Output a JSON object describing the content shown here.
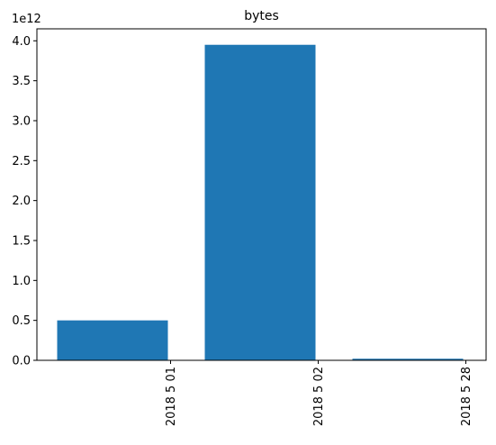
{
  "chart_data": {
    "type": "bar",
    "title": "bytes",
    "xlabel": "",
    "ylabel": "",
    "y_offset_label": "1e12",
    "categories": [
      "2018 5 01",
      "2018 5 02",
      "2018 5 28"
    ],
    "values": [
      500000000000,
      3950000000000,
      20000000000
    ],
    "ylim": [
      0,
      4150000000000
    ],
    "yticks": [
      0,
      0.5,
      1.0,
      1.5,
      2.0,
      2.5,
      3.0,
      3.5,
      4.0
    ],
    "ytick_labels": [
      "0.0",
      "0.5",
      "1.0",
      "1.5",
      "2.0",
      "2.5",
      "3.0",
      "3.5",
      "4.0"
    ],
    "ytick_scale": 1000000000000,
    "grid": false,
    "colors": {
      "bar": "#1f77b4",
      "axis": "#000000"
    }
  }
}
